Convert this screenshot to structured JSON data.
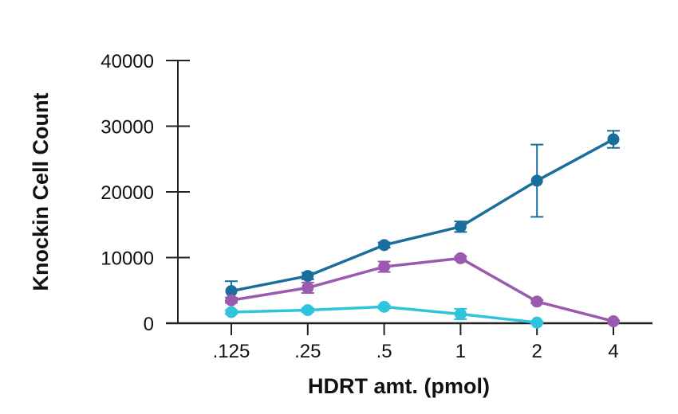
{
  "chart_data": {
    "type": "line",
    "title": "",
    "xlabel": "HDRT amt. (pmol)",
    "ylabel": "Knockin Cell Count",
    "categories": [
      ".125",
      ".25",
      ".5",
      "1",
      "2",
      "4"
    ],
    "ylim": [
      0,
      40000
    ],
    "yticks": [
      0,
      10000,
      20000,
      30000,
      40000
    ],
    "grid": false,
    "legend": "none",
    "series": [
      {
        "color": "#1a6e9c",
        "values": [
          4900,
          7200,
          11900,
          14700,
          21700,
          28000
        ],
        "errors": [
          1500,
          500,
          400,
          800,
          5500,
          1300
        ]
      },
      {
        "color": "#9b59b0",
        "values": [
          3500,
          5400,
          8600,
          9900,
          3300,
          300
        ],
        "errors": [
          400,
          800,
          800,
          300,
          250,
          150
        ]
      },
      {
        "color": "#2fc4dc",
        "values": [
          1700,
          2000,
          2500,
          1400,
          100,
          null
        ],
        "errors": [
          300,
          300,
          250,
          800,
          100,
          0
        ]
      }
    ]
  }
}
